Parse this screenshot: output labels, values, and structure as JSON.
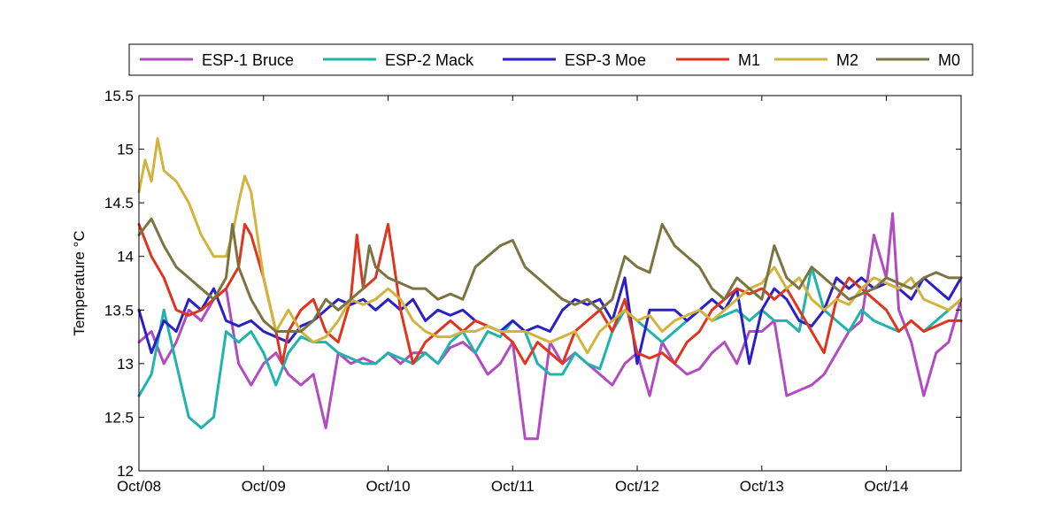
{
  "chart_data": {
    "type": "line",
    "title": "",
    "xlabel": "",
    "ylabel": "Temperature °C",
    "xlim": [
      0,
      6.6
    ],
    "ylim": [
      12,
      15.5
    ],
    "x_ticks": [
      0,
      1,
      2,
      3,
      4,
      5,
      6
    ],
    "x_tick_labels": [
      "Oct/08",
      "Oct/09",
      "Oct/10",
      "Oct/11",
      "Oct/12",
      "Oct/13",
      "Oct/14"
    ],
    "y_ticks": [
      12,
      12.5,
      13,
      13.5,
      14,
      14.5,
      15,
      15.5
    ],
    "y_tick_labels": [
      "12",
      "12.5",
      "13",
      "13.5",
      "14",
      "14.5",
      "15",
      "15.5"
    ],
    "grid": false,
    "legend_position": "top",
    "series": [
      {
        "name": "ESP-1 Bruce",
        "color": "#b04cbf",
        "x": [
          0,
          0.1,
          0.2,
          0.3,
          0.4,
          0.5,
          0.6,
          0.7,
          0.8,
          0.9,
          1.0,
          1.1,
          1.2,
          1.3,
          1.4,
          1.5,
          1.6,
          1.7,
          1.8,
          1.9,
          2.0,
          2.1,
          2.2,
          2.3,
          2.4,
          2.5,
          2.6,
          2.7,
          2.8,
          2.9,
          3.0,
          3.1,
          3.2,
          3.3,
          3.4,
          3.5,
          3.6,
          3.7,
          3.8,
          3.9,
          4.0,
          4.1,
          4.2,
          4.3,
          4.4,
          4.5,
          4.6,
          4.7,
          4.8,
          4.9,
          5.0,
          5.1,
          5.2,
          5.3,
          5.4,
          5.5,
          5.6,
          5.7,
          5.8,
          5.9,
          6.0,
          6.05,
          6.1,
          6.2,
          6.3,
          6.4,
          6.5,
          6.6
        ],
        "y": [
          13.2,
          13.3,
          13.0,
          13.2,
          13.5,
          13.4,
          13.6,
          13.7,
          13.0,
          12.8,
          13.0,
          13.1,
          12.9,
          12.8,
          12.9,
          12.4,
          13.1,
          13.0,
          13.05,
          13.0,
          13.1,
          13.0,
          13.1,
          13.1,
          13.0,
          13.15,
          13.2,
          13.1,
          12.9,
          13.0,
          13.2,
          12.3,
          12.3,
          13.2,
          13.0,
          13.1,
          13.0,
          12.9,
          12.8,
          13.0,
          13.1,
          12.7,
          13.2,
          13.0,
          12.9,
          12.95,
          13.1,
          13.2,
          13.0,
          13.3,
          13.3,
          13.4,
          12.7,
          12.75,
          12.8,
          12.9,
          13.1,
          13.3,
          13.4,
          14.2,
          13.8,
          14.4,
          13.5,
          13.2,
          12.7,
          13.1,
          13.2,
          13.6
        ]
      },
      {
        "name": "ESP-2 Mack",
        "color": "#1fb3ad",
        "x": [
          0,
          0.1,
          0.2,
          0.3,
          0.4,
          0.5,
          0.6,
          0.7,
          0.8,
          0.9,
          1.0,
          1.1,
          1.2,
          1.3,
          1.4,
          1.5,
          1.6,
          1.7,
          1.8,
          1.9,
          2.0,
          2.1,
          2.2,
          2.3,
          2.4,
          2.5,
          2.6,
          2.7,
          2.8,
          2.9,
          3.0,
          3.1,
          3.2,
          3.3,
          3.4,
          3.5,
          3.6,
          3.7,
          3.8,
          3.9,
          4.0,
          4.1,
          4.2,
          4.3,
          4.4,
          4.5,
          4.6,
          4.7,
          4.8,
          4.9,
          5.0,
          5.1,
          5.2,
          5.3,
          5.4,
          5.5,
          5.6,
          5.7,
          5.8,
          5.9,
          6.0,
          6.1,
          6.2,
          6.3,
          6.4,
          6.5,
          6.6
        ],
        "y": [
          12.7,
          12.9,
          13.5,
          13.0,
          12.5,
          12.4,
          12.5,
          13.3,
          13.2,
          13.3,
          13.1,
          12.8,
          13.1,
          13.25,
          13.2,
          13.2,
          13.1,
          13.05,
          13.0,
          13.0,
          13.1,
          13.05,
          13.0,
          13.1,
          13.0,
          13.2,
          13.3,
          13.1,
          13.3,
          13.25,
          13.4,
          13.3,
          13.0,
          12.9,
          12.9,
          13.1,
          13.0,
          12.95,
          13.3,
          13.5,
          13.4,
          13.3,
          13.2,
          13.3,
          13.4,
          13.5,
          13.4,
          13.45,
          13.5,
          13.4,
          13.5,
          13.4,
          13.4,
          13.3,
          13.9,
          13.5,
          13.4,
          13.3,
          13.5,
          13.4,
          13.35,
          13.3,
          13.4,
          13.3,
          13.4,
          13.5,
          13.6
        ]
      },
      {
        "name": "ESP-3 Moe",
        "color": "#2a1fc8",
        "x": [
          0,
          0.1,
          0.2,
          0.3,
          0.4,
          0.5,
          0.6,
          0.7,
          0.8,
          0.9,
          1.0,
          1.1,
          1.2,
          1.3,
          1.4,
          1.5,
          1.6,
          1.7,
          1.8,
          1.9,
          2.0,
          2.1,
          2.2,
          2.3,
          2.4,
          2.5,
          2.6,
          2.7,
          2.8,
          2.9,
          3.0,
          3.1,
          3.2,
          3.3,
          3.4,
          3.5,
          3.6,
          3.7,
          3.8,
          3.9,
          4.0,
          4.1,
          4.2,
          4.3,
          4.4,
          4.5,
          4.6,
          4.7,
          4.8,
          4.9,
          5.0,
          5.1,
          5.2,
          5.3,
          5.4,
          5.5,
          5.6,
          5.7,
          5.8,
          5.9,
          6.0,
          6.1,
          6.2,
          6.3,
          6.4,
          6.5,
          6.6
        ],
        "y": [
          13.5,
          13.1,
          13.4,
          13.3,
          13.6,
          13.5,
          13.7,
          13.4,
          13.35,
          13.4,
          13.3,
          13.25,
          13.2,
          13.35,
          13.4,
          13.5,
          13.6,
          13.55,
          13.6,
          13.5,
          13.6,
          13.5,
          13.6,
          13.4,
          13.5,
          13.45,
          13.5,
          13.4,
          13.35,
          13.3,
          13.4,
          13.3,
          13.35,
          13.3,
          13.5,
          13.6,
          13.55,
          13.6,
          13.4,
          13.8,
          13.0,
          13.5,
          13.5,
          13.5,
          13.4,
          13.5,
          13.6,
          13.5,
          13.7,
          13.0,
          13.5,
          13.7,
          13.6,
          13.4,
          13.35,
          13.5,
          13.8,
          13.7,
          13.8,
          13.7,
          13.75,
          13.7,
          13.6,
          13.8,
          13.7,
          13.6,
          13.8
        ]
      },
      {
        "name": "M1",
        "color": "#e0341f",
        "x": [
          0,
          0.1,
          0.2,
          0.3,
          0.4,
          0.5,
          0.6,
          0.7,
          0.8,
          0.85,
          0.9,
          1.0,
          1.1,
          1.15,
          1.2,
          1.3,
          1.4,
          1.5,
          1.6,
          1.7,
          1.75,
          1.8,
          1.9,
          2.0,
          2.05,
          2.1,
          2.2,
          2.3,
          2.4,
          2.5,
          2.6,
          2.7,
          2.8,
          2.9,
          3.0,
          3.1,
          3.2,
          3.3,
          3.4,
          3.5,
          3.6,
          3.7,
          3.8,
          3.9,
          4.0,
          4.1,
          4.2,
          4.3,
          4.4,
          4.5,
          4.6,
          4.7,
          4.8,
          4.9,
          5.0,
          5.1,
          5.2,
          5.3,
          5.4,
          5.5,
          5.6,
          5.7,
          5.8,
          5.9,
          6.0,
          6.1,
          6.2,
          6.3,
          6.4,
          6.5,
          6.6
        ],
        "y": [
          14.3,
          14.0,
          13.8,
          13.5,
          13.45,
          13.5,
          13.6,
          13.7,
          13.9,
          14.3,
          14.2,
          13.8,
          13.3,
          13.0,
          13.3,
          13.5,
          13.6,
          13.3,
          13.2,
          13.6,
          14.2,
          13.7,
          13.8,
          14.3,
          13.9,
          13.5,
          13.0,
          13.2,
          13.3,
          13.4,
          13.3,
          13.4,
          13.35,
          13.3,
          13.2,
          13.0,
          13.2,
          13.1,
          13.0,
          13.3,
          13.4,
          13.5,
          13.3,
          13.6,
          13.1,
          13.05,
          13.1,
          13.0,
          13.2,
          13.3,
          13.5,
          13.6,
          13.7,
          13.65,
          13.7,
          13.6,
          13.7,
          13.5,
          13.3,
          13.1,
          13.6,
          13.8,
          13.7,
          13.6,
          13.5,
          13.3,
          13.4,
          13.3,
          13.35,
          13.4,
          13.4
        ]
      },
      {
        "name": "M2",
        "color": "#d2b43c",
        "x": [
          0,
          0.05,
          0.1,
          0.15,
          0.2,
          0.3,
          0.4,
          0.5,
          0.6,
          0.7,
          0.75,
          0.8,
          0.85,
          0.9,
          1.0,
          1.1,
          1.2,
          1.3,
          1.4,
          1.5,
          1.6,
          1.7,
          1.8,
          1.9,
          2.0,
          2.1,
          2.2,
          2.3,
          2.4,
          2.5,
          2.6,
          2.7,
          2.8,
          2.9,
          3.0,
          3.1,
          3.2,
          3.3,
          3.4,
          3.5,
          3.6,
          3.7,
          3.8,
          3.9,
          4.0,
          4.1,
          4.2,
          4.3,
          4.4,
          4.5,
          4.6,
          4.7,
          4.8,
          4.9,
          5.0,
          5.1,
          5.2,
          5.3,
          5.4,
          5.5,
          5.6,
          5.7,
          5.8,
          5.9,
          6.0,
          6.1,
          6.2,
          6.3,
          6.4,
          6.5,
          6.6
        ],
        "y": [
          14.6,
          14.9,
          14.7,
          15.1,
          14.8,
          14.7,
          14.5,
          14.2,
          14.0,
          14.0,
          14.2,
          14.5,
          14.75,
          14.6,
          13.8,
          13.3,
          13.5,
          13.3,
          13.2,
          13.25,
          13.4,
          13.6,
          13.55,
          13.6,
          13.7,
          13.6,
          13.4,
          13.3,
          13.25,
          13.25,
          13.3,
          13.3,
          13.35,
          13.3,
          13.3,
          13.3,
          13.25,
          13.2,
          13.25,
          13.3,
          13.1,
          13.3,
          13.4,
          13.5,
          13.4,
          13.45,
          13.3,
          13.4,
          13.45,
          13.5,
          13.4,
          13.5,
          13.6,
          13.7,
          13.75,
          13.9,
          13.7,
          13.8,
          13.6,
          13.5,
          13.6,
          13.55,
          13.7,
          13.8,
          13.75,
          13.7,
          13.8,
          13.6,
          13.55,
          13.5,
          13.6
        ]
      },
      {
        "name": "M0",
        "color": "#7b7340",
        "x": [
          0,
          0.1,
          0.2,
          0.3,
          0.4,
          0.5,
          0.6,
          0.7,
          0.75,
          0.8,
          0.9,
          1.0,
          1.1,
          1.2,
          1.3,
          1.4,
          1.5,
          1.6,
          1.7,
          1.8,
          1.85,
          1.9,
          2.0,
          2.1,
          2.2,
          2.3,
          2.4,
          2.5,
          2.6,
          2.7,
          2.8,
          2.9,
          3.0,
          3.1,
          3.2,
          3.3,
          3.4,
          3.5,
          3.6,
          3.7,
          3.8,
          3.9,
          4.0,
          4.1,
          4.2,
          4.3,
          4.4,
          4.5,
          4.6,
          4.7,
          4.8,
          4.9,
          5.0,
          5.1,
          5.2,
          5.3,
          5.4,
          5.5,
          5.6,
          5.7,
          5.8,
          5.9,
          6.0,
          6.1,
          6.2,
          6.3,
          6.4,
          6.5,
          6.6
        ],
        "y": [
          14.2,
          14.35,
          14.1,
          13.9,
          13.8,
          13.7,
          13.6,
          13.8,
          14.3,
          13.9,
          13.6,
          13.4,
          13.3,
          13.3,
          13.3,
          13.4,
          13.6,
          13.5,
          13.6,
          13.7,
          14.1,
          13.9,
          13.8,
          13.75,
          13.7,
          13.7,
          13.6,
          13.65,
          13.6,
          13.9,
          14.0,
          14.1,
          14.15,
          13.9,
          13.8,
          13.7,
          13.6,
          13.55,
          13.6,
          13.5,
          13.6,
          14.0,
          13.9,
          13.85,
          14.3,
          14.1,
          14.0,
          13.9,
          13.7,
          13.6,
          13.8,
          13.7,
          13.6,
          14.1,
          13.8,
          13.7,
          13.9,
          13.8,
          13.7,
          13.6,
          13.65,
          13.7,
          13.8,
          13.75,
          13.7,
          13.8,
          13.85,
          13.8,
          13.8
        ]
      }
    ]
  }
}
